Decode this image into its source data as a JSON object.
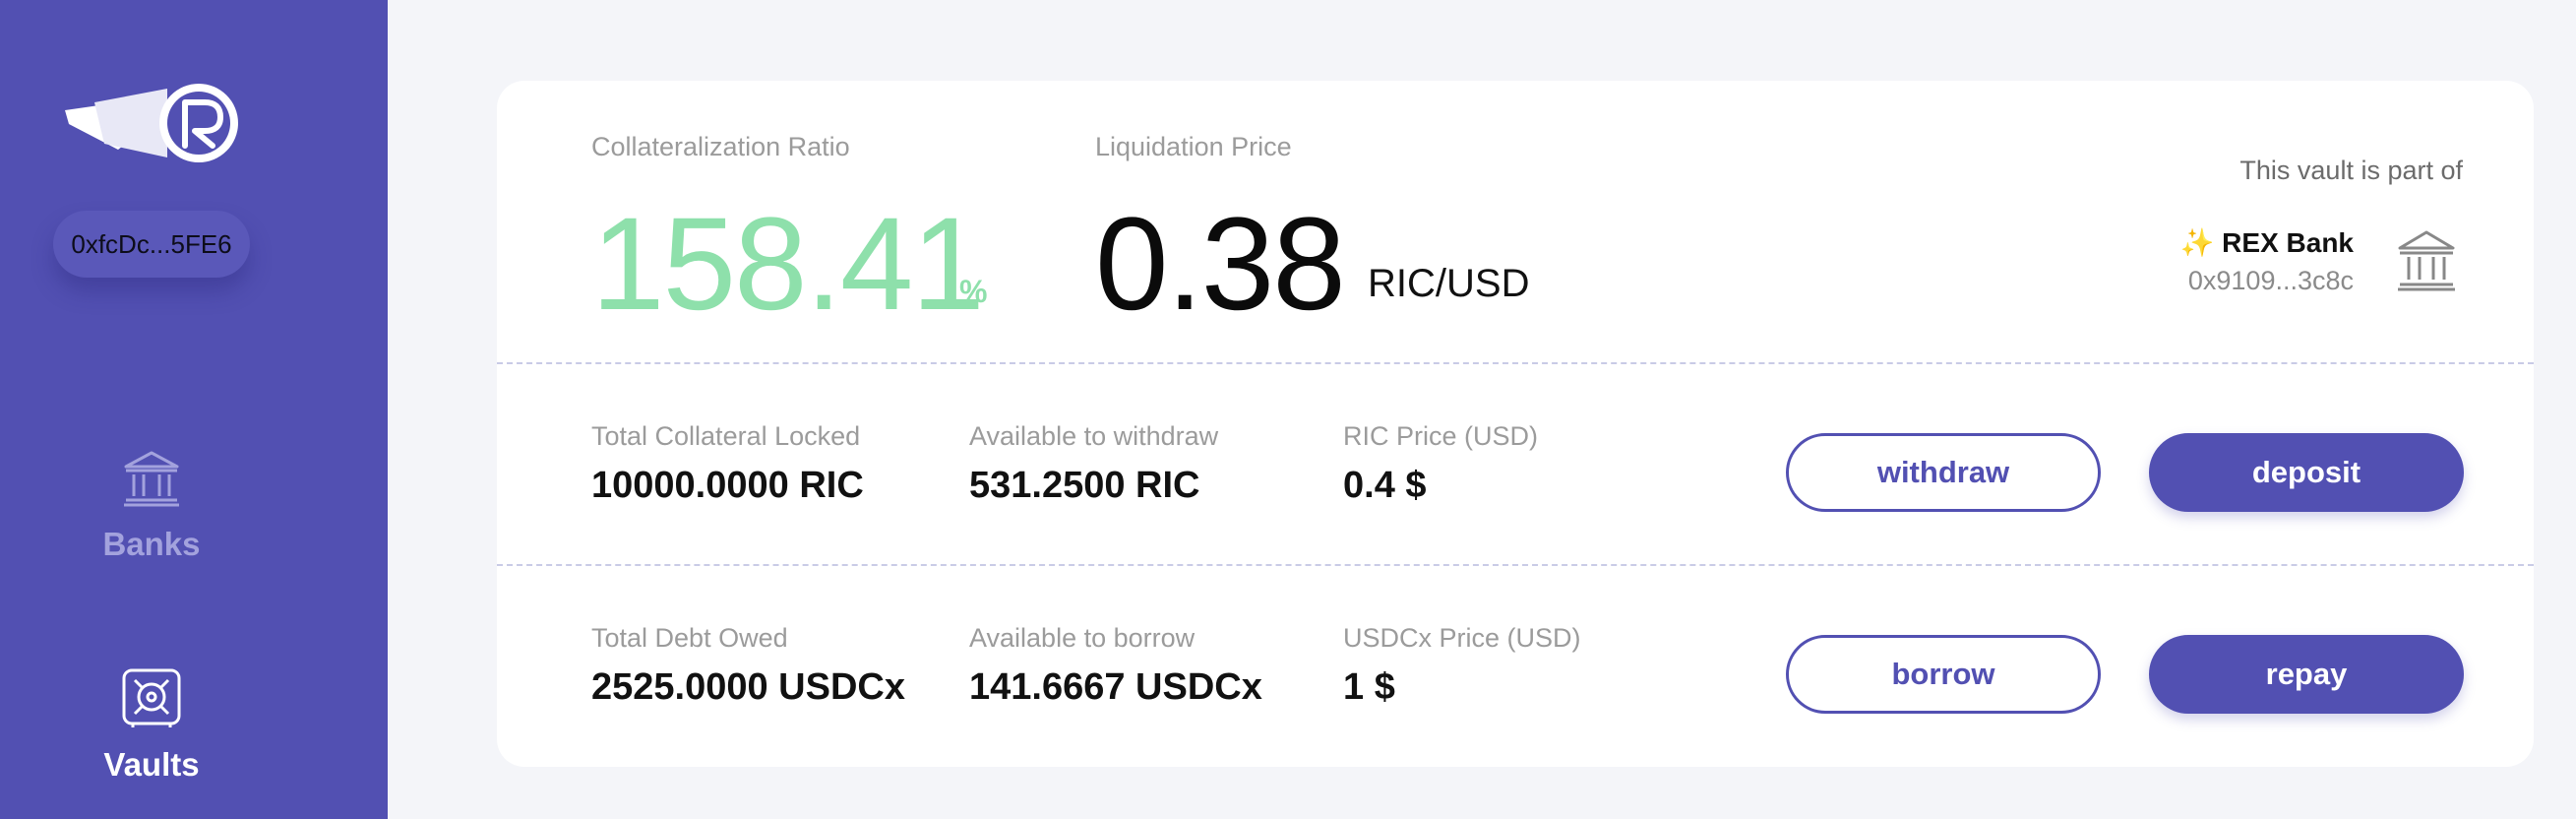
{
  "sidebar": {
    "wallet_address": "0xfcDc...5FE6",
    "nav": {
      "banks": {
        "label": "Banks",
        "icon": "bank-icon",
        "active": false
      },
      "vaults": {
        "label": "Vaults",
        "icon": "safe-icon",
        "active": true
      }
    }
  },
  "vault": {
    "collateralization_ratio": {
      "label": "Collateralization Ratio",
      "value": "158.41",
      "unit": "%"
    },
    "liquidation_price": {
      "label": "Liquidation Price",
      "value": "0.38",
      "unit": "RIC/USD"
    },
    "bank_info": {
      "caption": "This vault is part of",
      "name": "✨ REX Bank",
      "address": "0x9109...3c8c",
      "icon": "bank-icon"
    },
    "collateral": {
      "total": {
        "label": "Total Collateral Locked",
        "value": "10000.0000 RIC"
      },
      "available": {
        "label": "Available to withdraw",
        "value": "531.2500 RIC"
      },
      "price": {
        "label": "RIC Price (USD)",
        "value": "0.4 $"
      },
      "withdraw_label": "withdraw",
      "deposit_label": "deposit"
    },
    "debt": {
      "total": {
        "label": "Total Debt Owed",
        "value": "2525.0000 USDCx"
      },
      "available": {
        "label": "Available to borrow",
        "value": "141.6667 USDCx"
      },
      "price": {
        "label": "USDCx Price (USD)",
        "value": "1 $"
      },
      "borrow_label": "borrow",
      "repay_label": "repay"
    }
  },
  "colors": {
    "sidebar": "#5250b2",
    "accent": "#5250b2",
    "ratio_green": "#8ee0ab",
    "background": "#f4f5f9"
  }
}
